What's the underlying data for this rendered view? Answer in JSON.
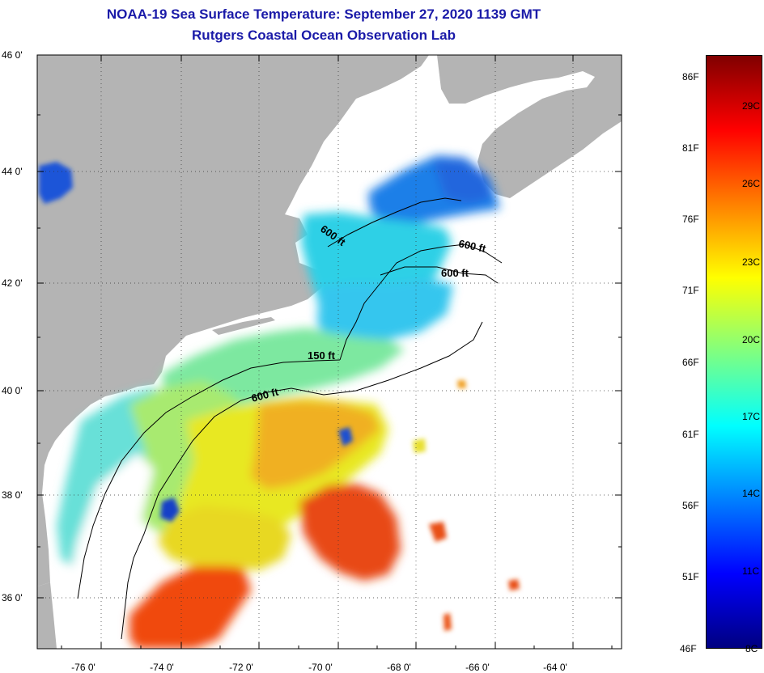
{
  "header": {
    "title": "NOAA-19 Sea Surface Temperature:  September 27, 2020 1139 GMT",
    "subtitle": "Rutgers Coastal Ocean Observation Lab"
  },
  "axes": {
    "lat_labels": [
      "46 0'",
      "44 0'",
      "42 0'",
      "40 0'",
      "38 0'",
      "36 0'"
    ],
    "lon_labels": [
      "-76 0'",
      "-74 0'",
      "-72 0'",
      "-70 0'",
      "-68 0'",
      "-66 0'",
      "-64 0'"
    ]
  },
  "contours": {
    "labels": [
      "600 ft",
      "600 ft",
      "600 ft",
      "150 ft",
      "600 ft"
    ]
  },
  "colorbar": {
    "fahrenheit": [
      "86F",
      "81F",
      "76F",
      "71F",
      "66F",
      "61F",
      "56F",
      "51F",
      "46F"
    ],
    "celsius": [
      "29C",
      "26C",
      "23C",
      "20C",
      "17C",
      "14C",
      "11C",
      "8C"
    ],
    "colors": [
      "#000080",
      "#0000ff",
      "#0080ff",
      "#00ffff",
      "#80ff80",
      "#ffff00",
      "#ff8000",
      "#ff0000",
      "#800000"
    ]
  },
  "colors": {
    "land": "#b4b4b4",
    "title": "#1a1aa8"
  }
}
